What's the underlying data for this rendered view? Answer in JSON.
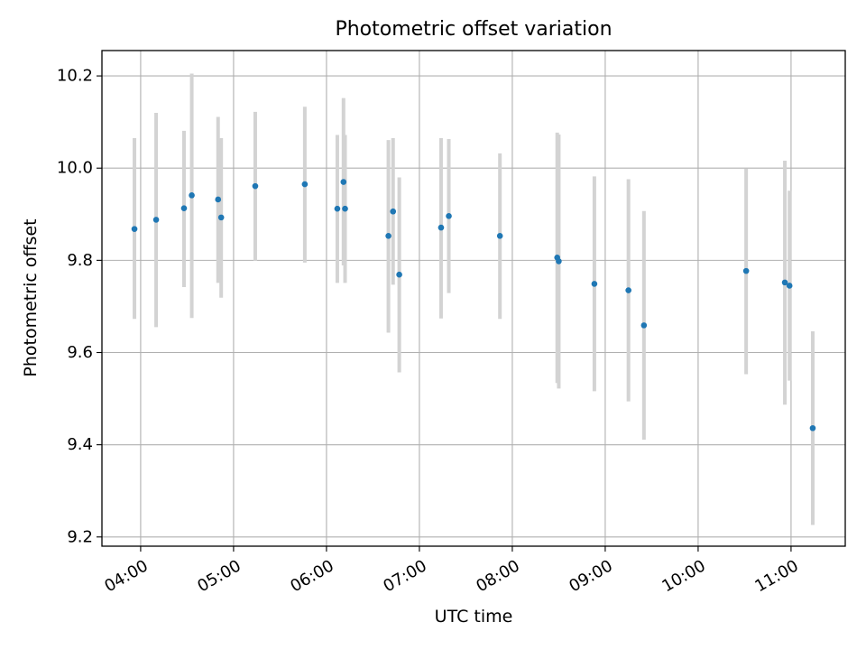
{
  "chart_data": {
    "type": "scatter",
    "title": "Photometric offset variation",
    "xlabel": "UTC time",
    "ylabel": "Photometric offset",
    "x_type": "time",
    "xlim": [
      "03:35",
      "11:35"
    ],
    "ylim": [
      9.18,
      10.255
    ],
    "x_ticks": [
      "04:00",
      "05:00",
      "06:00",
      "07:00",
      "08:00",
      "09:00",
      "10:00",
      "11:00"
    ],
    "y_ticks": [
      9.2,
      9.4,
      9.6,
      9.8,
      10.0,
      10.2
    ],
    "y_tick_labels": [
      "9.2",
      "9.4",
      "9.6",
      "9.8",
      "10.0",
      "10.2"
    ],
    "grid": true,
    "marker_color": "#1f77b4",
    "errorbar_color": "#d3d3d3",
    "points": [
      {
        "x": "03:56",
        "y": 9.868,
        "y_low": 9.673,
        "y_high": 10.065
      },
      {
        "x": "04:10",
        "y": 9.888,
        "y_low": 9.655,
        "y_high": 10.12
      },
      {
        "x": "04:28",
        "y": 9.913,
        "y_low": 9.742,
        "y_high": 10.081
      },
      {
        "x": "04:33",
        "y": 9.941,
        "y_low": 9.675,
        "y_high": 10.205
      },
      {
        "x": "04:50",
        "y": 9.932,
        "y_low": 9.751,
        "y_high": 10.111
      },
      {
        "x": "04:52",
        "y": 9.893,
        "y_low": 9.719,
        "y_high": 10.065
      },
      {
        "x": "05:14",
        "y": 9.961,
        "y_low": 9.799,
        "y_high": 10.122
      },
      {
        "x": "05:46",
        "y": 9.965,
        "y_low": 9.795,
        "y_high": 10.133
      },
      {
        "x": "06:07",
        "y": 9.912,
        "y_low": 9.751,
        "y_high": 10.072
      },
      {
        "x": "06:11",
        "y": 9.97,
        "y_low": 9.789,
        "y_high": 10.152
      },
      {
        "x": "06:12",
        "y": 9.912,
        "y_low": 9.751,
        "y_high": 10.072
      },
      {
        "x": "06:40",
        "y": 9.853,
        "y_low": 9.643,
        "y_high": 10.061
      },
      {
        "x": "06:43",
        "y": 9.906,
        "y_low": 9.747,
        "y_high": 10.065
      },
      {
        "x": "06:47",
        "y": 9.769,
        "y_low": 9.557,
        "y_high": 9.98
      },
      {
        "x": "07:14",
        "y": 9.871,
        "y_low": 9.674,
        "y_high": 10.065
      },
      {
        "x": "07:19",
        "y": 9.896,
        "y_low": 9.729,
        "y_high": 10.063
      },
      {
        "x": "07:52",
        "y": 9.853,
        "y_low": 9.673,
        "y_high": 10.032
      },
      {
        "x": "08:29",
        "y": 9.806,
        "y_low": 9.534,
        "y_high": 10.077
      },
      {
        "x": "08:30",
        "y": 9.798,
        "y_low": 9.522,
        "y_high": 10.073
      },
      {
        "x": "08:53",
        "y": 9.749,
        "y_low": 9.516,
        "y_high": 9.982
      },
      {
        "x": "09:15",
        "y": 9.735,
        "y_low": 9.494,
        "y_high": 9.976
      },
      {
        "x": "09:25",
        "y": 9.659,
        "y_low": 9.411,
        "y_high": 9.907
      },
      {
        "x": "10:31",
        "y": 9.777,
        "y_low": 9.553,
        "y_high": 9.999
      },
      {
        "x": "10:56",
        "y": 9.752,
        "y_low": 9.487,
        "y_high": 10.016
      },
      {
        "x": "10:59",
        "y": 9.745,
        "y_low": 9.539,
        "y_high": 9.951
      },
      {
        "x": "11:14",
        "y": 9.436,
        "y_low": 9.226,
        "y_high": 9.646
      }
    ]
  }
}
